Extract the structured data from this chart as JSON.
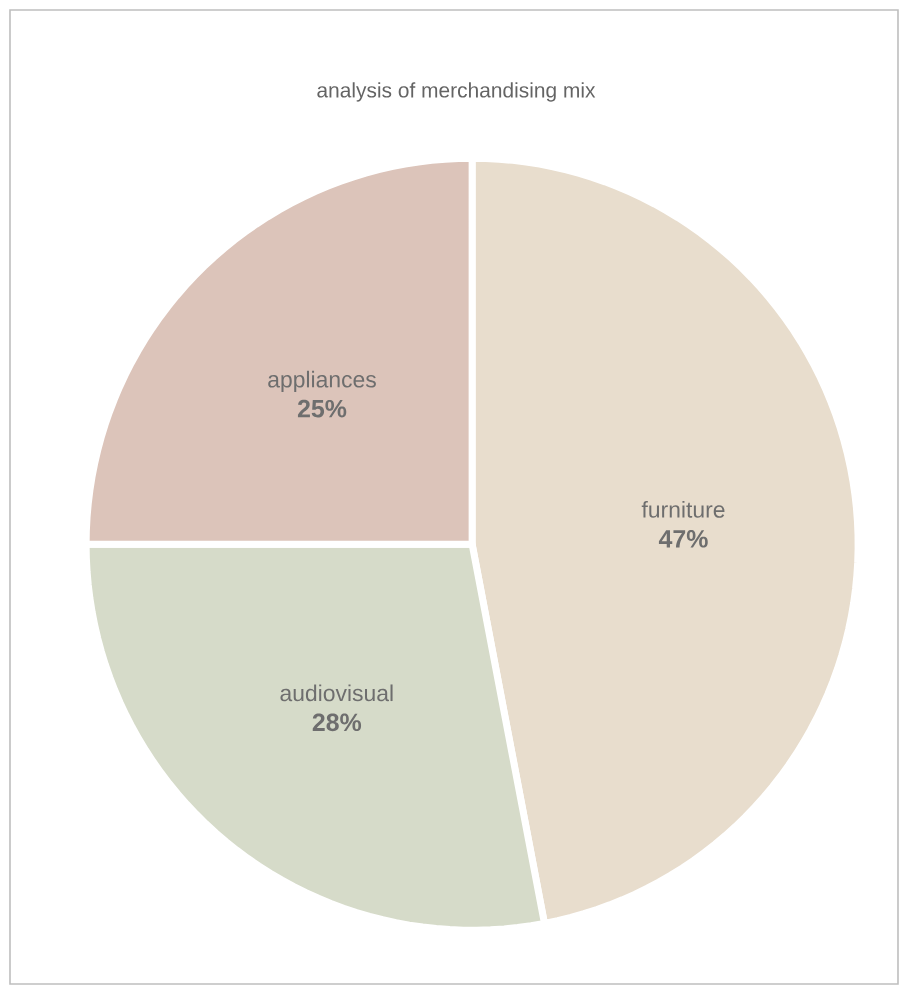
{
  "chart_data": {
    "type": "pie",
    "title": "analysis of merchandising mix",
    "categories": [
      "furniture",
      "audiovisual",
      "appliances"
    ],
    "values": [
      47,
      28,
      25
    ],
    "value_labels": [
      "47%",
      "28%",
      "25%"
    ],
    "colors": [
      "#e8ddcd",
      "#d6dbc9",
      "#dcc4ba"
    ],
    "data_labels": true,
    "legend": false
  }
}
